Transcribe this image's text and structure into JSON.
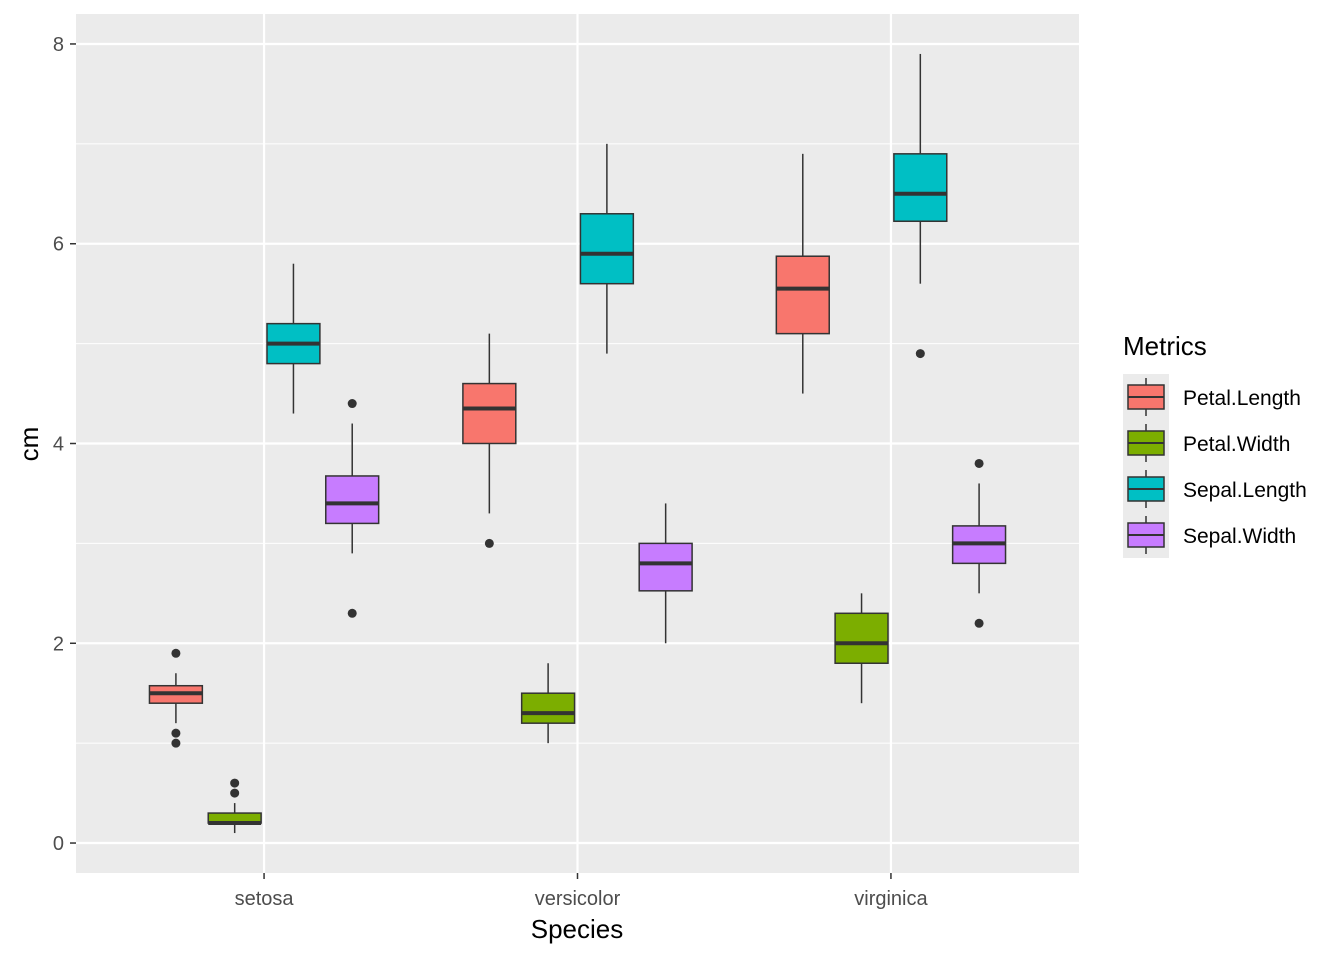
{
  "chart_data": {
    "type": "boxplot",
    "xlabel": "Species",
    "ylabel": "cm",
    "ylim": [
      -0.3,
      8.3
    ],
    "y_ticks": [
      "0",
      "2",
      "4",
      "6",
      "8"
    ],
    "categories": [
      "setosa",
      "versicolor",
      "virginica"
    ],
    "grid": true,
    "legend": {
      "title": "Metrics",
      "placement": "right",
      "entries": [
        "Petal.Length",
        "Petal.Width",
        "Sepal.Length",
        "Sepal.Width"
      ]
    },
    "colors": {
      "Petal.Length": "#F8766D",
      "Petal.Width": "#7CAE00",
      "Sepal.Length": "#00BFC4",
      "Sepal.Width": "#C77CFF",
      "panel": "#EBEBEB",
      "grid": "#FFFFFF",
      "outline": "#333333"
    },
    "series": [
      {
        "name": "Petal.Length",
        "boxes": [
          {
            "category": "setosa",
            "whisker_low": 1.2,
            "q1": 1.4,
            "median": 1.5,
            "q3": 1.575,
            "whisker_high": 1.7,
            "outliers": [
              1.9,
              1.1,
              1.0
            ]
          },
          {
            "category": "versicolor",
            "whisker_low": 3.3,
            "q1": 4.0,
            "median": 4.35,
            "q3": 4.6,
            "whisker_high": 5.1,
            "outliers": [
              3.0
            ]
          },
          {
            "category": "virginica",
            "whisker_low": 4.5,
            "q1": 5.1,
            "median": 5.55,
            "q3": 5.875,
            "whisker_high": 6.9,
            "outliers": []
          }
        ]
      },
      {
        "name": "Petal.Width",
        "boxes": [
          {
            "category": "setosa",
            "whisker_low": 0.1,
            "q1": 0.2,
            "median": 0.2,
            "q3": 0.3,
            "whisker_high": 0.4,
            "outliers": [
              0.6,
              0.5
            ]
          },
          {
            "category": "versicolor",
            "whisker_low": 1.0,
            "q1": 1.2,
            "median": 1.3,
            "q3": 1.5,
            "whisker_high": 1.8,
            "outliers": []
          },
          {
            "category": "virginica",
            "whisker_low": 1.4,
            "q1": 1.8,
            "median": 2.0,
            "q3": 2.3,
            "whisker_high": 2.5,
            "outliers": []
          }
        ]
      },
      {
        "name": "Sepal.Length",
        "boxes": [
          {
            "category": "setosa",
            "whisker_low": 4.3,
            "q1": 4.8,
            "median": 5.0,
            "q3": 5.2,
            "whisker_high": 5.8,
            "outliers": []
          },
          {
            "category": "versicolor",
            "whisker_low": 4.9,
            "q1": 5.6,
            "median": 5.9,
            "q3": 6.3,
            "whisker_high": 7.0,
            "outliers": []
          },
          {
            "category": "virginica",
            "whisker_low": 5.6,
            "q1": 6.225,
            "median": 6.5,
            "q3": 6.9,
            "whisker_high": 7.9,
            "outliers": [
              4.9
            ]
          }
        ]
      },
      {
        "name": "Sepal.Width",
        "boxes": [
          {
            "category": "setosa",
            "whisker_low": 2.9,
            "q1": 3.2,
            "median": 3.4,
            "q3": 3.675,
            "whisker_high": 4.2,
            "outliers": [
              4.4,
              2.3
            ]
          },
          {
            "category": "versicolor",
            "whisker_low": 2.0,
            "q1": 2.525,
            "median": 2.8,
            "q3": 3.0,
            "whisker_high": 3.4,
            "outliers": []
          },
          {
            "category": "virginica",
            "whisker_low": 2.5,
            "q1": 2.8,
            "median": 3.0,
            "q3": 3.175,
            "whisker_high": 3.6,
            "outliers": [
              3.8,
              2.2
            ]
          }
        ]
      }
    ]
  }
}
